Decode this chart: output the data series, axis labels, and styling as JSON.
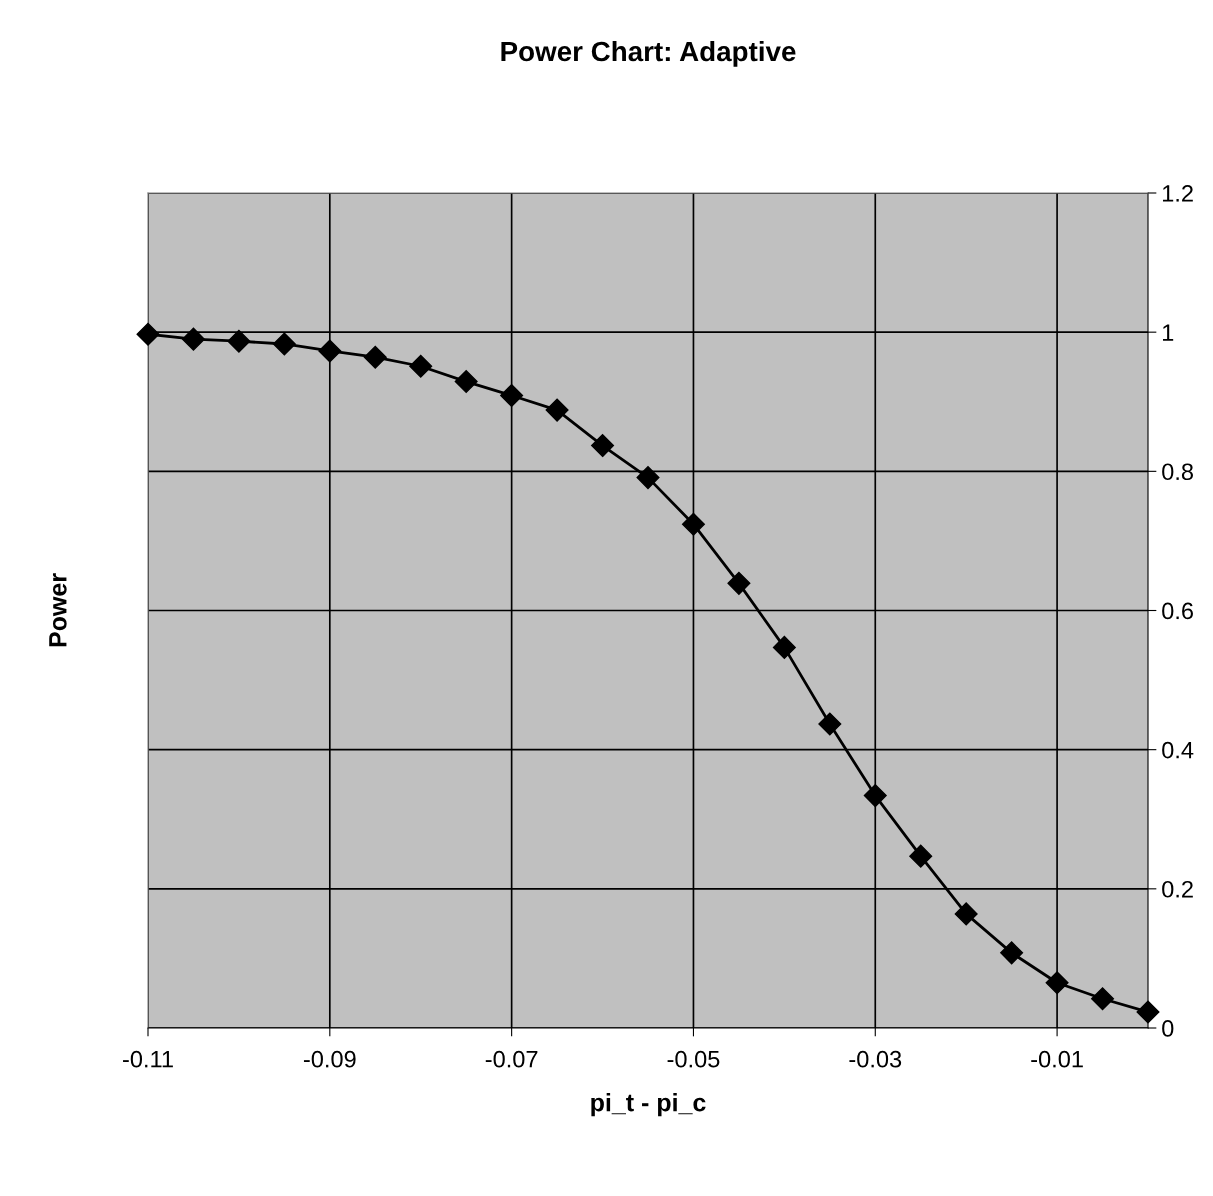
{
  "chart_data": {
    "type": "line",
    "title": "Power Chart: Adaptive",
    "xlabel": "pi_t - pi_c",
    "ylabel": "Power",
    "x": [
      -0.11,
      -0.105,
      -0.1,
      -0.095,
      -0.09,
      -0.085,
      -0.08,
      -0.075,
      -0.07,
      -0.065,
      -0.06,
      -0.055,
      -0.05,
      -0.045,
      -0.04,
      -0.035,
      -0.03,
      -0.025,
      -0.02,
      -0.015,
      -0.01,
      -0.005,
      0
    ],
    "series": [
      {
        "color": "#000000",
        "values": [
          0.997,
          0.99,
          0.987,
          0.983,
          0.973,
          0.964,
          0.951,
          0.929,
          0.909,
          0.888,
          0.837,
          0.791,
          0.724,
          0.639,
          0.547,
          0.437,
          0.334,
          0.247,
          0.164,
          0.108,
          0.065,
          0.042,
          0.023
        ]
      }
    ],
    "xlim": [
      -0.11,
      0
    ],
    "xticks": [
      -0.11,
      -0.09,
      -0.07,
      -0.05,
      -0.03,
      -0.01
    ],
    "ylim": [
      0,
      1.2
    ],
    "yticks": [
      0,
      0.2,
      0.4,
      0.6,
      0.8,
      1,
      1.2
    ],
    "grid": true,
    "marker": "diamond",
    "line_style": "solid",
    "legend": false
  }
}
